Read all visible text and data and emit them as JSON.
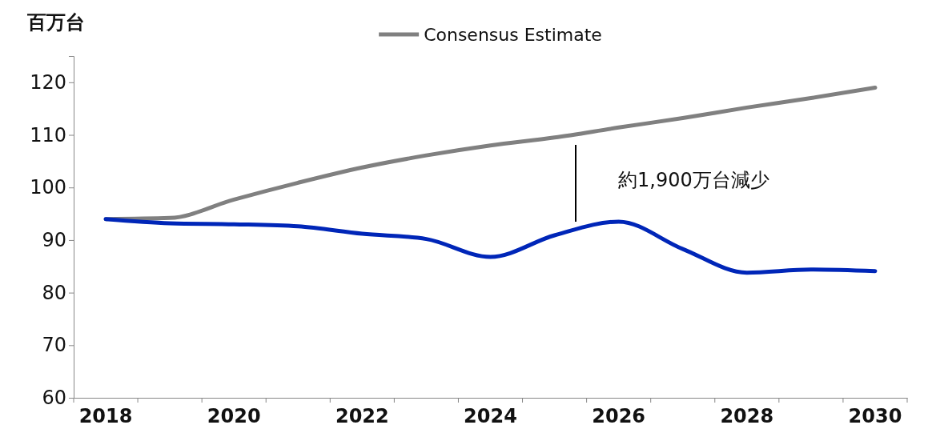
{
  "chart_data": {
    "type": "line",
    "ylabel": "百万台",
    "categories": [
      "2018",
      null,
      "2020",
      null,
      "2022",
      null,
      "2024",
      null,
      "2026",
      null,
      "2028",
      null,
      "2030"
    ],
    "series": [
      {
        "name": "Consensus Estimate",
        "color": "#808080",
        "values": [
          94,
          94.2,
          97.7,
          100.9,
          103.8,
          106.1,
          108,
          109.5,
          111.4,
          113.2,
          115.2,
          117,
          119
        ]
      },
      {
        "color": "#0026b8",
        "values": [
          94,
          93.2,
          93,
          92.6,
          91.2,
          90.2,
          86.8,
          90.9,
          93.5,
          88.3,
          83.8,
          84.4,
          84.1
        ]
      }
    ],
    "ylim": [
      60,
      125
    ],
    "yticks": [
      60,
      70,
      80,
      90,
      100,
      110,
      120
    ],
    "grid": false,
    "legend": "top",
    "marker": "none",
    "line_style": "solid",
    "annotations": [
      "約1,900万台減少"
    ]
  }
}
